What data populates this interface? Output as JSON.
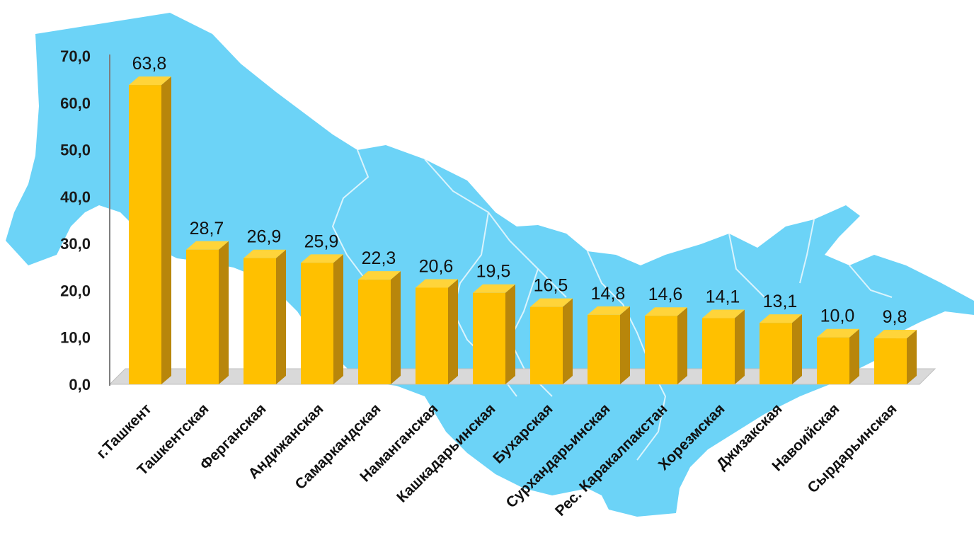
{
  "chart_data": {
    "type": "bar",
    "categories": [
      "г.Ташкент",
      "Ташкентская",
      "Ферганская",
      "Андижанская",
      "Самаркандская",
      "Наманганская",
      "Кашкадарьинская",
      "Бухарская",
      "Сурхандарьинская",
      "Рес. Каракалпакстан",
      "Хорезмская",
      "Джизакская",
      "Навоийская",
      "Сырдарьинская"
    ],
    "values": [
      63.8,
      28.7,
      26.9,
      25.9,
      22.3,
      20.6,
      19.5,
      16.5,
      14.8,
      14.6,
      14.1,
      13.1,
      10.0,
      9.8
    ],
    "value_labels": [
      "63,8",
      "28,7",
      "26,9",
      "25,9",
      "22,3",
      "20,6",
      "19,5",
      "16,5",
      "14,8",
      "14,6",
      "14,1",
      "13,1",
      "10,0",
      "9,8"
    ],
    "yticks": [
      0,
      10,
      20,
      30,
      40,
      50,
      60,
      70
    ],
    "ytick_labels": [
      "0,0",
      "10,0",
      "20,0",
      "30,0",
      "40,0",
      "50,0",
      "60,0",
      "70,0"
    ],
    "ylim": [
      0,
      70
    ],
    "title": "",
    "xlabel": "",
    "ylabel": "",
    "grid": false,
    "legend": "none",
    "style": "3d-bar",
    "background": "map-of-uzbekistan",
    "colors": {
      "bar_front": "#FFC000",
      "bar_side": "#B8860B",
      "bar_top": "#FFD43A",
      "map_fill": "#6CD3F7",
      "map_border": "#E6F7FD",
      "floor": "#D9D9D9",
      "axis": "#7F7F7F"
    }
  }
}
